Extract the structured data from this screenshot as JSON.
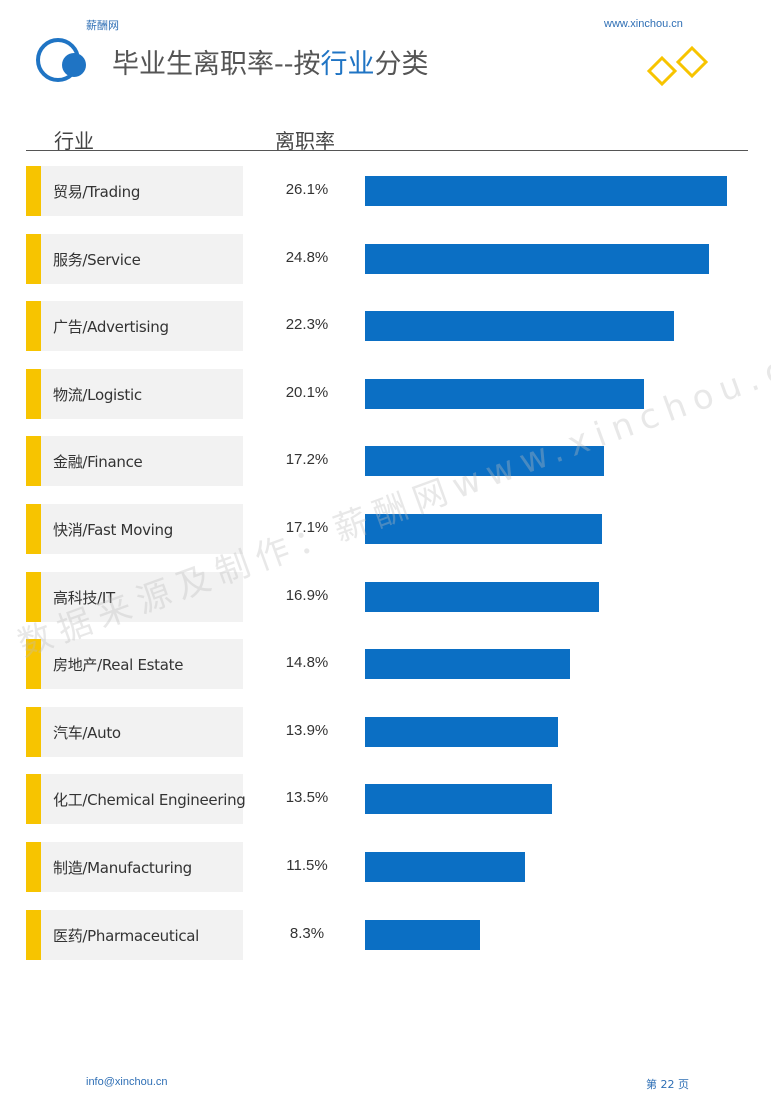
{
  "header": {
    "brand": "薪酬网",
    "website": "www.xinchou.cn",
    "title_prefix": "毕业生离职率--按",
    "title_accent": "行业",
    "title_suffix": "分类"
  },
  "colors": {
    "bar": "#0b6fc4",
    "accent": "#f7c400",
    "brand_blue": "#2f6fb5"
  },
  "chart_data": {
    "type": "bar",
    "orientation": "horizontal",
    "title": "毕业生离职率--按行业分类",
    "column_headers": [
      "行业",
      "离职率"
    ],
    "categories": [
      "贸易/Trading",
      "服务/Service",
      "广告/Advertising",
      "物流/Logistic",
      "金融/Finance",
      "快消/Fast Moving",
      "高科技/IT",
      "房地产/Real Estate",
      "汽车/Auto",
      "化工/Chemical Engineering",
      "制造/Manufacturing",
      "医药/Pharmaceutical"
    ],
    "values": [
      26.1,
      24.8,
      22.3,
      20.1,
      17.2,
      17.1,
      16.9,
      14.8,
      13.9,
      13.5,
      11.5,
      8.3
    ],
    "value_labels": [
      "26.1%",
      "24.8%",
      "22.3%",
      "20.1%",
      "17.2%",
      "17.1%",
      "16.9%",
      "14.8%",
      "13.9%",
      "13.5%",
      "11.5%",
      "8.3%"
    ],
    "unit": "%",
    "xlim": [
      0,
      26.1
    ]
  },
  "watermark": "数据来源及制作：薪酬网www.xinchou.cn",
  "footer": {
    "email": "info@xinchou.cn",
    "page": "第 22 页"
  }
}
